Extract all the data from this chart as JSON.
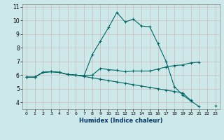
{
  "xlabel": "Humidex (Indice chaleur)",
  "background_color": "#cce8e8",
  "line_color": "#006666",
  "grid_color": "#dddddd",
  "xlim": [
    -0.5,
    23.5
  ],
  "ylim": [
    3.5,
    11.2
  ],
  "yticks": [
    4,
    5,
    6,
    7,
    8,
    9,
    10,
    11
  ],
  "xticks": [
    0,
    1,
    2,
    3,
    4,
    5,
    6,
    7,
    8,
    9,
    10,
    11,
    12,
    13,
    14,
    15,
    16,
    17,
    18,
    19,
    20,
    21,
    22,
    23
  ],
  "line1_x": [
    0,
    1,
    2,
    3,
    4,
    5,
    6,
    7,
    8,
    9,
    10,
    11,
    12,
    13,
    14,
    15,
    16,
    17,
    18,
    19,
    20,
    21,
    22,
    23
  ],
  "line1_y": [
    5.85,
    5.85,
    6.2,
    6.25,
    6.2,
    6.05,
    6.0,
    5.95,
    7.5,
    8.5,
    9.5,
    10.6,
    9.9,
    10.1,
    9.6,
    9.55,
    8.3,
    7.0,
    5.15,
    4.55,
    4.1,
    3.7,
    null,
    null
  ],
  "line2_x": [
    0,
    1,
    2,
    3,
    4,
    5,
    6,
    7,
    8,
    9,
    10,
    11,
    12,
    13,
    14,
    15,
    16,
    17,
    18,
    19,
    20,
    21,
    22,
    23
  ],
  "line2_y": [
    5.85,
    5.85,
    6.2,
    6.25,
    6.2,
    6.05,
    6.0,
    5.95,
    6.0,
    6.5,
    6.4,
    6.35,
    6.25,
    6.3,
    6.3,
    6.3,
    6.45,
    6.6,
    6.7,
    6.75,
    6.9,
    6.95,
    null,
    null
  ],
  "line3_x": [
    0,
    1,
    2,
    3,
    4,
    5,
    6,
    7,
    8,
    9,
    10,
    11,
    12,
    13,
    14,
    15,
    16,
    17,
    18,
    19,
    20,
    21,
    22,
    23
  ],
  "line3_y": [
    5.85,
    5.85,
    6.2,
    6.25,
    6.2,
    6.05,
    6.0,
    5.9,
    5.8,
    5.7,
    5.6,
    5.5,
    5.4,
    5.3,
    5.2,
    5.1,
    5.0,
    4.9,
    4.8,
    4.7,
    4.15,
    null,
    null,
    3.75
  ]
}
